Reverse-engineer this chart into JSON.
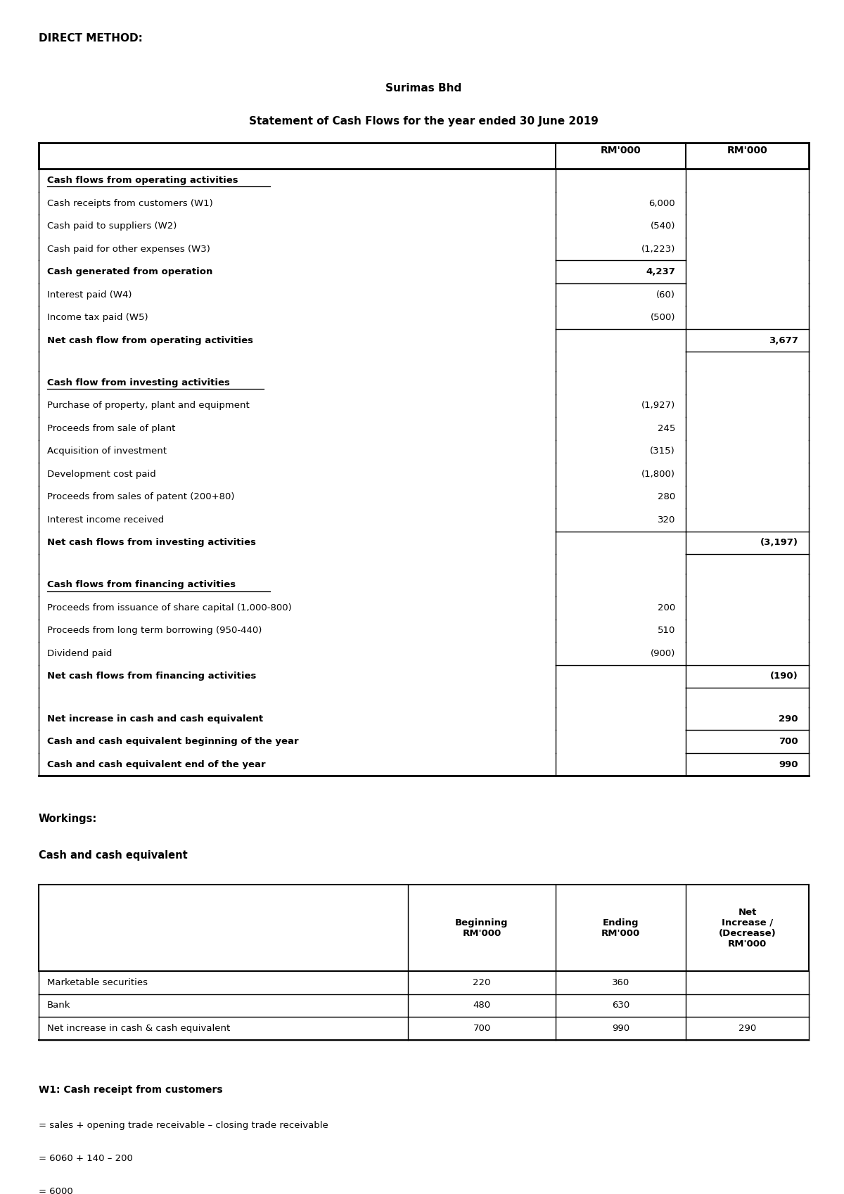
{
  "page_title": "DIRECT METHOD:",
  "company_name": "Surimas Bhd",
  "statement_title": "Statement of Cash Flows for the year ended 30 June 2019",
  "col1_header": "RM'000",
  "col2_header": "RM'000",
  "background_color": "#ffffff",
  "main_table": {
    "sections": [
      {
        "type": "section_header",
        "text": "Cash flows from operating activities",
        "col1": "",
        "col2": ""
      },
      {
        "type": "row",
        "text": "Cash receipts from customers (W1)",
        "col1": "6,000",
        "col2": ""
      },
      {
        "type": "row",
        "text": "Cash paid to suppliers (W2)",
        "col1": "(540)",
        "col2": ""
      },
      {
        "type": "row",
        "text": "Cash paid for other expenses (W3)",
        "col1": "(1,223)",
        "col2": ""
      },
      {
        "type": "row_bold",
        "text": "Cash generated from operation",
        "col1": "4,237",
        "col2": "",
        "border_top_col1": true
      },
      {
        "type": "row",
        "text": "Interest paid (W4)",
        "col1": "(60)",
        "col2": ""
      },
      {
        "type": "row",
        "text": "Income tax paid (W5)",
        "col1": "(500)",
        "col2": ""
      },
      {
        "type": "row_bold",
        "text": "Net cash flow from operating activities",
        "col1": "",
        "col2": "3,677",
        "border_top_col1": true,
        "border_top_col2": true
      },
      {
        "type": "spacer"
      },
      {
        "type": "section_header",
        "text": "Cash flow from investing activities",
        "col1": "",
        "col2": ""
      },
      {
        "type": "row",
        "text": "Purchase of property, plant and equipment",
        "col1": "(1,927)",
        "col2": ""
      },
      {
        "type": "row",
        "text": "Proceeds from sale of plant",
        "col1": "245",
        "col2": ""
      },
      {
        "type": "row",
        "text": "Acquisition of investment",
        "col1": "(315)",
        "col2": ""
      },
      {
        "type": "row",
        "text": "Development cost paid",
        "col1": "(1,800)",
        "col2": ""
      },
      {
        "type": "row",
        "text": "Proceeds from sales of patent (200+80)",
        "col1": "280",
        "col2": ""
      },
      {
        "type": "row",
        "text": "Interest income received",
        "col1": "320",
        "col2": ""
      },
      {
        "type": "row_bold",
        "text": "Net cash flows from investing activities",
        "col1": "",
        "col2": "(3,197)",
        "border_top_col1": true,
        "border_top_col2": true
      },
      {
        "type": "spacer"
      },
      {
        "type": "section_header",
        "text": "Cash flows from financing activities",
        "col1": "",
        "col2": ""
      },
      {
        "type": "row",
        "text": "Proceeds from issuance of share capital (1,000-800)",
        "col1": "200",
        "col2": ""
      },
      {
        "type": "row",
        "text": "Proceeds from long term borrowing (950-440)",
        "col1": "510",
        "col2": ""
      },
      {
        "type": "row",
        "text": "Dividend paid",
        "col1": "(900)",
        "col2": ""
      },
      {
        "type": "row_bold",
        "text": "Net cash flows from financing activities",
        "col1": "",
        "col2": "(190)",
        "border_top_col1": true,
        "border_top_col2": true
      },
      {
        "type": "spacer"
      },
      {
        "type": "row_bold",
        "text": "Net increase in cash and cash equivalent",
        "col1": "",
        "col2": "290"
      },
      {
        "type": "row_bold",
        "text": "Cash and cash equivalent beginning of the year",
        "col1": "",
        "col2": "700"
      },
      {
        "type": "row_bold",
        "text": "Cash and cash equivalent end of the year",
        "col1": "",
        "col2": "990",
        "last_row": true
      }
    ]
  },
  "workings_title": "Workings:",
  "cash_equiv_title": "Cash and cash equivalent",
  "second_table": {
    "headers": [
      "",
      "Beginning\nRM'000",
      "Ending\nRM'000",
      "Net\nIncrease /\n(Decrease)\nRM'000"
    ],
    "rows": [
      [
        "Marketable securities",
        "220",
        "360",
        ""
      ],
      [
        "Bank",
        "480",
        "630",
        ""
      ],
      [
        "Net increase in cash & cash equivalent",
        "700",
        "990",
        "290"
      ]
    ]
  },
  "w1_title": "W1: Cash receipt from customers",
  "w1_line1": "= sales + opening trade receivable – closing trade receivable",
  "w1_line2": "= 6060 + 140 – 200",
  "w1_line3": "= 6000"
}
